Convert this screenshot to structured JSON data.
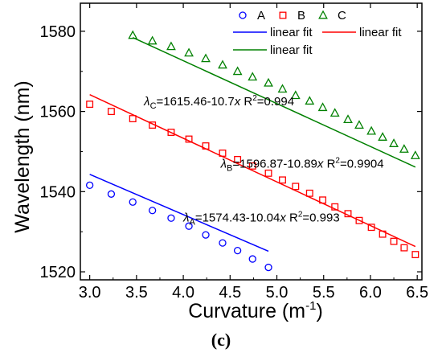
{
  "chart_data": {
    "type": "scatter",
    "xlabel": "Curvature (m",
    "xlabel_sup": "-1",
    "xlabel_close": ")",
    "ylabel": "Wavelength (nm)",
    "xlim": [
      2.9,
      6.55
    ],
    "ylim": [
      1518,
      1587
    ],
    "x_ticks": [
      "3.0",
      "3.5",
      "4.0",
      "4.5",
      "5.0",
      "5.5",
      "6.0",
      "6.5"
    ],
    "y_ticks": [
      "1520",
      "1540",
      "1560",
      "1580"
    ],
    "x_tick_values": [
      3.0,
      3.5,
      4.0,
      4.5,
      5.0,
      5.5,
      6.0,
      6.5
    ],
    "y_tick_values": [
      1520,
      1540,
      1560,
      1580
    ],
    "legend_position": "top-right",
    "series": [
      {
        "name": "A",
        "marker": "circle",
        "color": "#0000ff",
        "x": [
          3.0,
          3.23,
          3.46,
          3.67,
          3.87,
          4.06,
          4.24,
          4.42,
          4.58,
          4.74,
          4.91
        ],
        "y": [
          1541.6,
          1539.4,
          1537.4,
          1535.3,
          1533.4,
          1531.4,
          1529.2,
          1527.2,
          1525.3,
          1523.2,
          1521.1
        ],
        "fit": {
          "label": "linear fit",
          "intercept": 1574.43,
          "slope": -10.04,
          "x_range": [
            3.0,
            4.91
          ]
        }
      },
      {
        "name": "B",
        "marker": "square",
        "color": "#ff0000",
        "x": [
          3.0,
          3.23,
          3.46,
          3.67,
          3.87,
          4.06,
          4.24,
          4.42,
          4.58,
          4.74,
          4.91,
          5.06,
          5.2,
          5.35,
          5.49,
          5.62,
          5.76,
          5.88,
          6.01,
          6.13,
          6.25,
          6.36,
          6.48
        ],
        "y": [
          1561.8,
          1560.0,
          1558.2,
          1556.6,
          1554.8,
          1553.1,
          1551.4,
          1549.6,
          1548.0,
          1546.4,
          1544.6,
          1542.9,
          1541.3,
          1539.6,
          1537.9,
          1536.2,
          1534.5,
          1532.8,
          1531.1,
          1529.4,
          1527.6,
          1526.0,
          1524.3
        ],
        "fit": {
          "label": "linear fit",
          "intercept": 1596.87,
          "slope": -10.89,
          "x_range": [
            3.0,
            6.48
          ]
        }
      },
      {
        "name": "C",
        "marker": "triangle",
        "color": "#008000",
        "x": [
          3.46,
          3.67,
          3.87,
          4.06,
          4.24,
          4.42,
          4.58,
          4.74,
          4.91,
          5.06,
          5.2,
          5.35,
          5.49,
          5.62,
          5.76,
          5.88,
          6.01,
          6.13,
          6.25,
          6.36,
          6.48
        ],
        "y": [
          1579.0,
          1577.6,
          1576.2,
          1574.6,
          1573.2,
          1571.6,
          1570.0,
          1568.6,
          1567.1,
          1565.6,
          1564.0,
          1562.6,
          1561.0,
          1559.6,
          1558.0,
          1556.6,
          1555.1,
          1553.6,
          1552.0,
          1550.6,
          1549.0
        ],
        "fit": {
          "label": "linear fit",
          "intercept": 1615.46,
          "slope": -10.7,
          "x_range": [
            3.46,
            6.48
          ]
        }
      }
    ],
    "annotations": [
      {
        "series": "C",
        "lambda": "λ",
        "sub": "C",
        "eq": "=1615.46-10.7",
        "var": "x",
        "r2_label": "R",
        "r2_sup": "2",
        "r2_value": "=0.994",
        "at": [
          3.58,
          1561.5
        ]
      },
      {
        "series": "B",
        "lambda": "λ",
        "sub": "B",
        "eq": "=1596.87-10.89",
        "var": "x",
        "r2_label": "R",
        "r2_sup": "2",
        "r2_value": "=0.9904",
        "at": [
          4.4,
          1546.0
        ]
      },
      {
        "series": "A",
        "lambda": "λ",
        "sub": "A",
        "eq": "=1574.43-10.04",
        "var": "x",
        "r2_label": "R",
        "r2_sup": "2",
        "r2_value": "=0.993",
        "at": [
          4.0,
          1532.5
        ]
      }
    ]
  },
  "caption": "(c)"
}
